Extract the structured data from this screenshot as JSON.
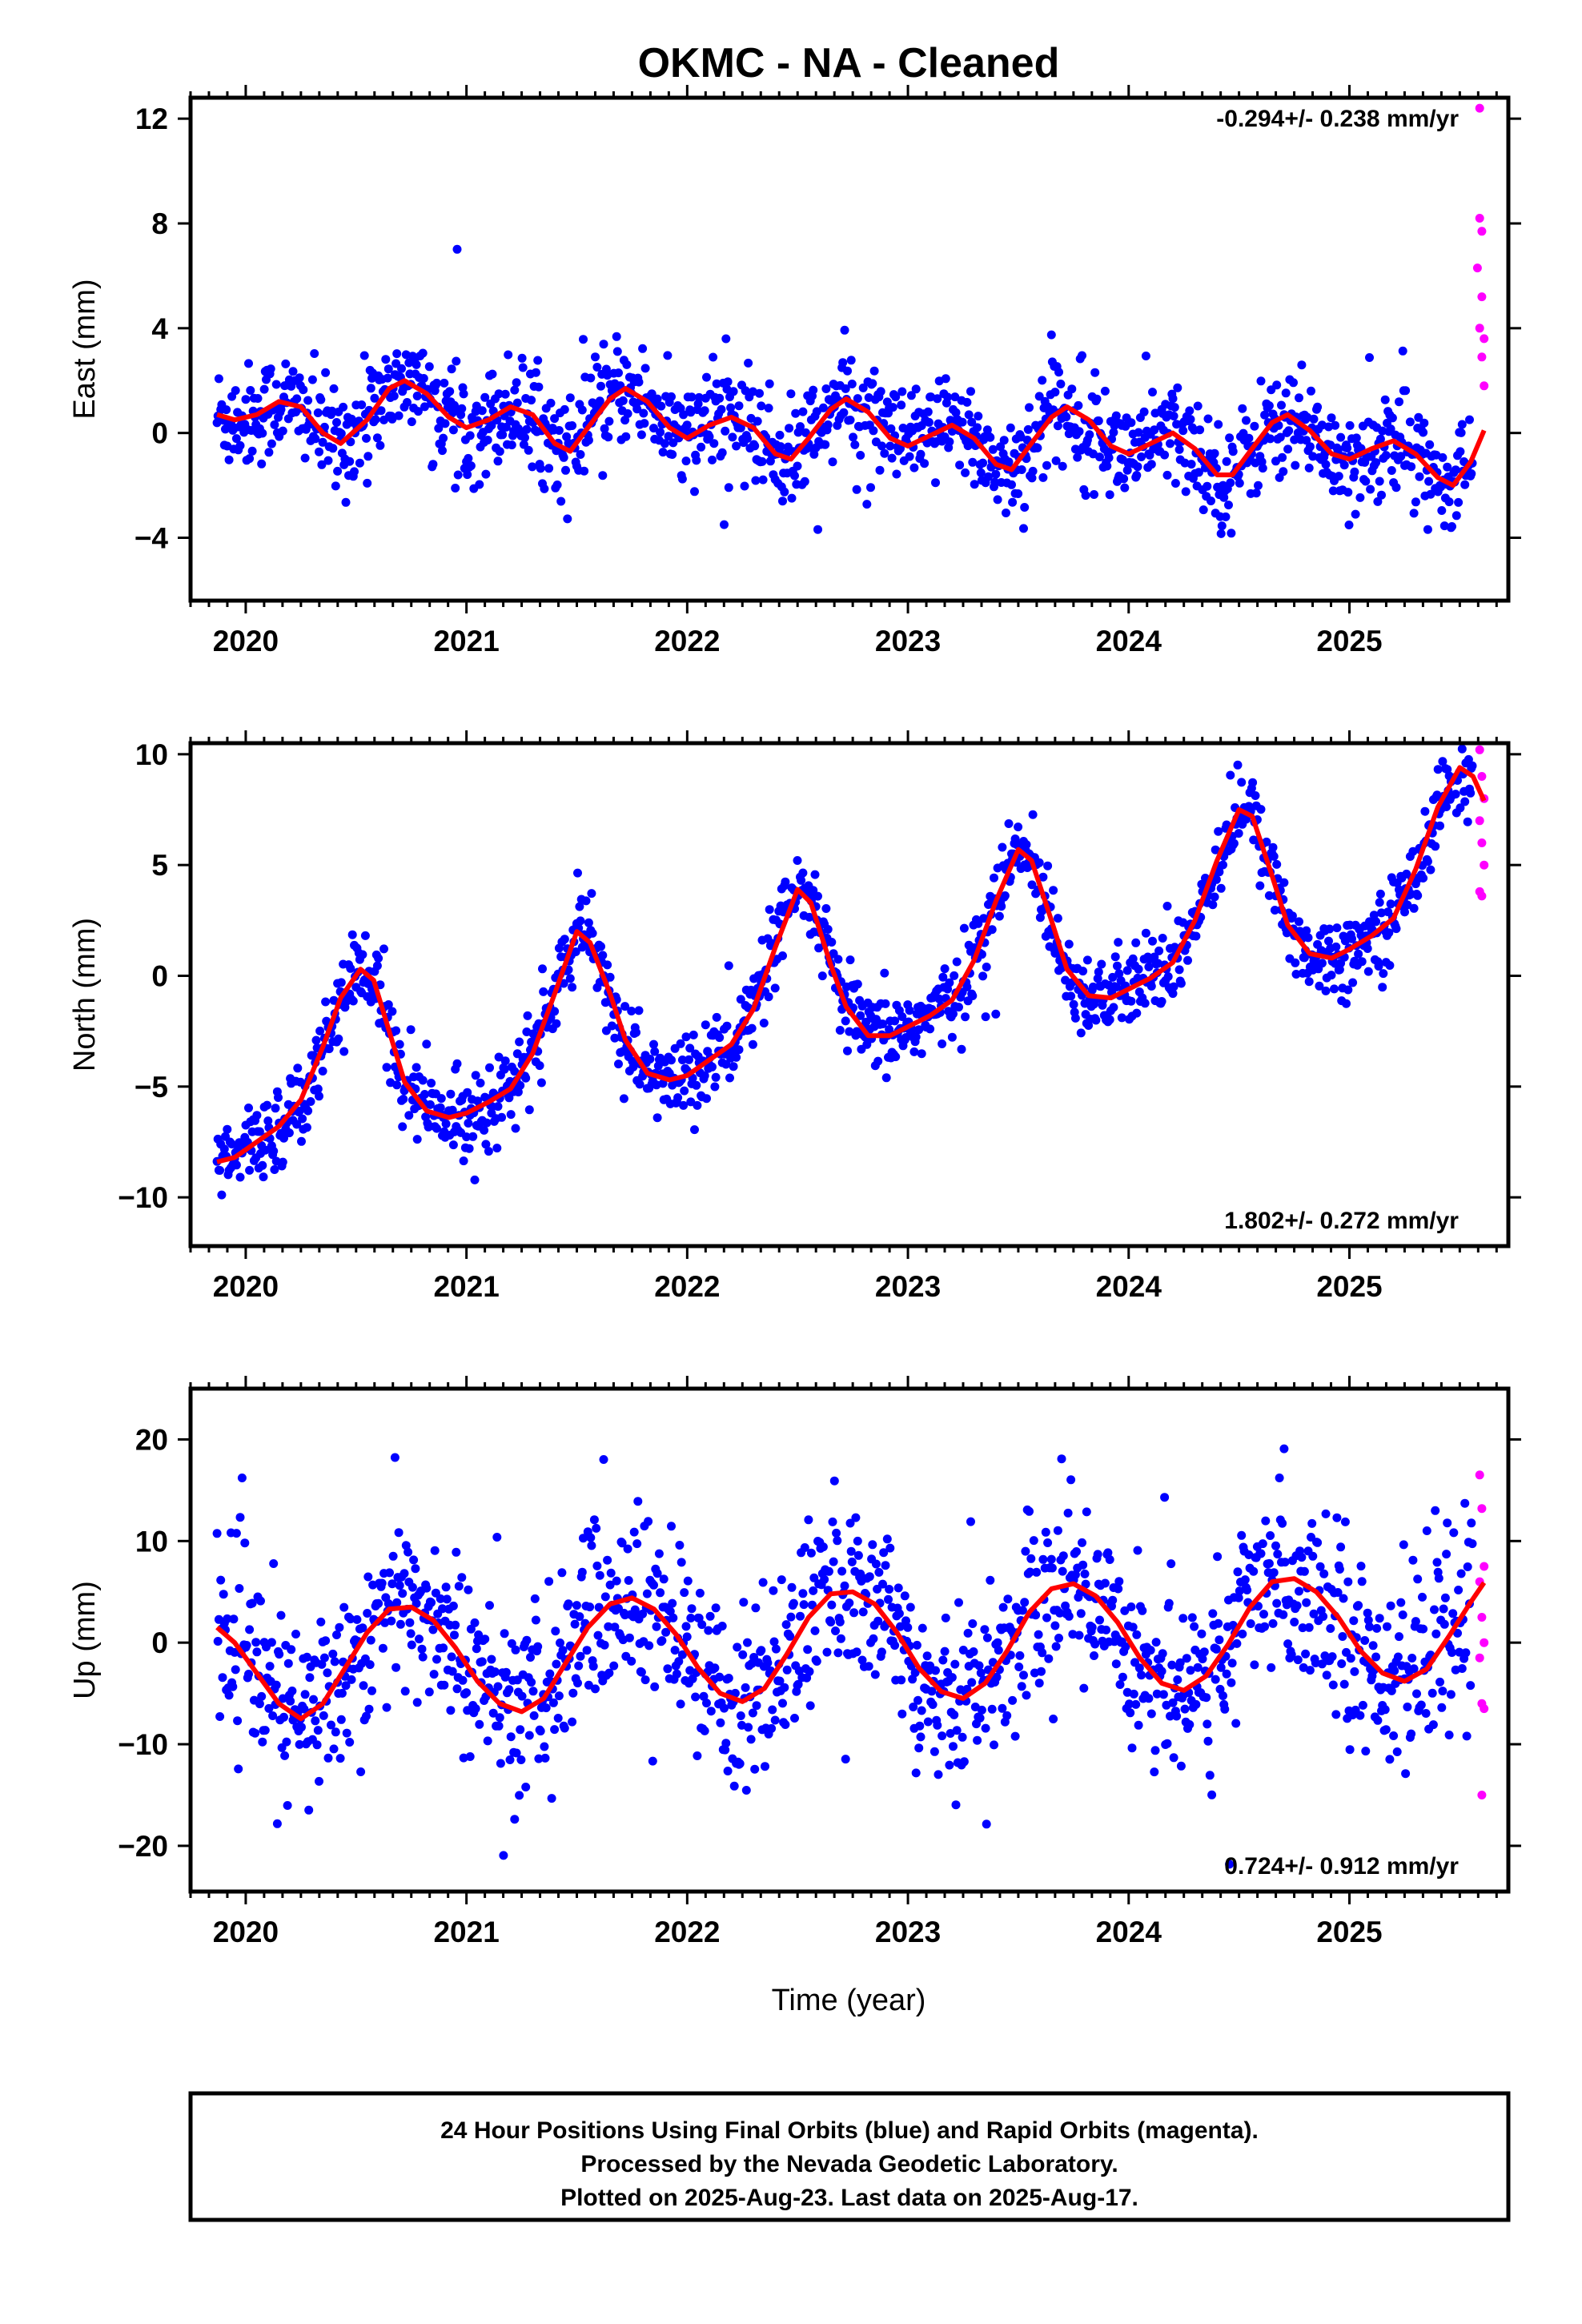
{
  "title": "OKMC  - NA - Cleaned",
  "colors": {
    "final": "#0000ff",
    "rapid": "#ff00ff",
    "fit": "#ff0000",
    "frame": "#000000"
  },
  "chart_data": [
    {
      "type": "scatter",
      "component": "east",
      "ylabel": "East (mm)",
      "xlabel": "",
      "rate": "-0.294+/- 0.238 mm/yr",
      "rate_position": "top-right",
      "xlim": [
        2019.75,
        2025.72
      ],
      "ylim": [
        -6.4,
        12.8
      ],
      "xticks": [
        "2020",
        "2021",
        "2022",
        "2023",
        "2024",
        "2025"
      ],
      "yticks": [
        "12",
        "8",
        "4",
        "0",
        "−4"
      ],
      "ytick_values": [
        12,
        8,
        4,
        0,
        -4
      ],
      "series": [
        {
          "color": "blue",
          "data_range": [
            2019.87,
            2025.56
          ],
          "scatter_sd": 1.0
        },
        {
          "color": "magenta",
          "points": [
            [
              2025.59,
              12.4
            ],
            [
              2025.59,
              8.2
            ],
            [
              2025.6,
              7.7
            ],
            [
              2025.58,
              6.3
            ],
            [
              2025.6,
              5.2
            ],
            [
              2025.59,
              4.0
            ],
            [
              2025.61,
              3.6
            ],
            [
              2025.6,
              2.9
            ],
            [
              2025.61,
              1.8
            ]
          ]
        }
      ],
      "fit": [
        [
          2019.87,
          0.7
        ],
        [
          2019.95,
          0.5
        ],
        [
          2020.05,
          0.7
        ],
        [
          2020.15,
          1.2
        ],
        [
          2020.25,
          1.0
        ],
        [
          2020.35,
          0.0
        ],
        [
          2020.43,
          -0.4
        ],
        [
          2020.55,
          0.5
        ],
        [
          2020.65,
          1.7
        ],
        [
          2020.72,
          2.0
        ],
        [
          2020.82,
          1.5
        ],
        [
          2020.92,
          0.6
        ],
        [
          2021.0,
          0.2
        ],
        [
          2021.1,
          0.5
        ],
        [
          2021.2,
          1.0
        ],
        [
          2021.3,
          0.7
        ],
        [
          2021.4,
          -0.4
        ],
        [
          2021.47,
          -0.7
        ],
        [
          2021.55,
          0.2
        ],
        [
          2021.65,
          1.3
        ],
        [
          2021.72,
          1.7
        ],
        [
          2021.82,
          1.2
        ],
        [
          2021.92,
          0.2
        ],
        [
          2022.0,
          -0.2
        ],
        [
          2022.1,
          0.3
        ],
        [
          2022.2,
          0.6
        ],
        [
          2022.3,
          0.2
        ],
        [
          2022.4,
          -0.8
        ],
        [
          2022.47,
          -1.0
        ],
        [
          2022.55,
          -0.2
        ],
        [
          2022.65,
          0.9
        ],
        [
          2022.72,
          1.3
        ],
        [
          2022.82,
          0.8
        ],
        [
          2022.92,
          -0.2
        ],
        [
          2023.0,
          -0.5
        ],
        [
          2023.1,
          -0.1
        ],
        [
          2023.2,
          0.3
        ],
        [
          2023.3,
          -0.2
        ],
        [
          2023.4,
          -1.2
        ],
        [
          2023.47,
          -1.4
        ],
        [
          2023.55,
          -0.5
        ],
        [
          2023.65,
          0.6
        ],
        [
          2023.72,
          1.0
        ],
        [
          2023.82,
          0.5
        ],
        [
          2023.92,
          -0.5
        ],
        [
          2024.0,
          -0.8
        ],
        [
          2024.1,
          -0.4
        ],
        [
          2024.2,
          0.0
        ],
        [
          2024.3,
          -0.6
        ],
        [
          2024.4,
          -1.6
        ],
        [
          2024.47,
          -1.6
        ],
        [
          2024.55,
          -0.7
        ],
        [
          2024.65,
          0.4
        ],
        [
          2024.72,
          0.7
        ],
        [
          2024.82,
          0.1
        ],
        [
          2024.92,
          -0.8
        ],
        [
          2025.0,
          -1.0
        ],
        [
          2025.1,
          -0.6
        ],
        [
          2025.2,
          -0.3
        ],
        [
          2025.3,
          -0.8
        ],
        [
          2025.4,
          -1.7
        ],
        [
          2025.47,
          -2.0
        ],
        [
          2025.55,
          -1.1
        ],
        [
          2025.61,
          0.1
        ]
      ]
    },
    {
      "type": "scatter",
      "component": "north",
      "ylabel": "North (mm)",
      "xlabel": "",
      "rate": "1.802+/- 0.272 mm/yr",
      "rate_position": "bottom-right",
      "xlim": [
        2019.75,
        2025.72
      ],
      "ylim": [
        -12.2,
        10.5
      ],
      "xticks": [
        "2020",
        "2021",
        "2022",
        "2023",
        "2024",
        "2025"
      ],
      "yticks": [
        "10",
        "5",
        "0",
        "−5",
        "−10"
      ],
      "ytick_values": [
        10,
        5,
        0,
        -5,
        -10
      ],
      "series": [
        {
          "color": "blue",
          "data_range": [
            2019.87,
            2025.56
          ],
          "scatter_sd": 0.9
        },
        {
          "color": "magenta",
          "points": [
            [
              2025.59,
              10.2
            ],
            [
              2025.6,
              9.0
            ],
            [
              2025.61,
              8.0
            ],
            [
              2025.59,
              7.0
            ],
            [
              2025.6,
              6.0
            ],
            [
              2025.61,
              5.0
            ],
            [
              2025.59,
              3.8
            ],
            [
              2025.6,
              3.6
            ]
          ]
        }
      ],
      "fit": [
        [
          2019.87,
          -8.4
        ],
        [
          2019.95,
          -8.2
        ],
        [
          2020.05,
          -7.5
        ],
        [
          2020.15,
          -6.8
        ],
        [
          2020.25,
          -5.6
        ],
        [
          2020.35,
          -3.2
        ],
        [
          2020.43,
          -1.0
        ],
        [
          2020.52,
          0.3
        ],
        [
          2020.58,
          -0.2
        ],
        [
          2020.65,
          -2.5
        ],
        [
          2020.72,
          -4.8
        ],
        [
          2020.82,
          -6.1
        ],
        [
          2020.92,
          -6.4
        ],
        [
          2021.0,
          -6.2
        ],
        [
          2021.1,
          -5.7
        ],
        [
          2021.2,
          -5.1
        ],
        [
          2021.3,
          -3.5
        ],
        [
          2021.4,
          -0.8
        ],
        [
          2021.5,
          2.0
        ],
        [
          2021.56,
          1.5
        ],
        [
          2021.65,
          -0.8
        ],
        [
          2021.72,
          -2.9
        ],
        [
          2021.82,
          -4.4
        ],
        [
          2021.92,
          -4.7
        ],
        [
          2022.0,
          -4.5
        ],
        [
          2022.1,
          -3.8
        ],
        [
          2022.2,
          -3.1
        ],
        [
          2022.3,
          -1.5
        ],
        [
          2022.4,
          1.3
        ],
        [
          2022.5,
          3.9
        ],
        [
          2022.56,
          3.3
        ],
        [
          2022.65,
          0.5
        ],
        [
          2022.72,
          -1.4
        ],
        [
          2022.82,
          -2.7
        ],
        [
          2022.92,
          -2.7
        ],
        [
          2023.0,
          -2.3
        ],
        [
          2023.1,
          -1.8
        ],
        [
          2023.2,
          -1.1
        ],
        [
          2023.3,
          0.7
        ],
        [
          2023.4,
          3.4
        ],
        [
          2023.5,
          5.7
        ],
        [
          2023.56,
          5.2
        ],
        [
          2023.65,
          2.5
        ],
        [
          2023.72,
          0.3
        ],
        [
          2023.82,
          -0.9
        ],
        [
          2023.92,
          -1.0
        ],
        [
          2024.0,
          -0.6
        ],
        [
          2024.1,
          -0.1
        ],
        [
          2024.2,
          0.6
        ],
        [
          2024.3,
          2.5
        ],
        [
          2024.4,
          5.2
        ],
        [
          2024.5,
          7.5
        ],
        [
          2024.56,
          7.2
        ],
        [
          2024.65,
          4.5
        ],
        [
          2024.72,
          2.3
        ],
        [
          2024.82,
          1.0
        ],
        [
          2024.92,
          0.8
        ],
        [
          2025.0,
          1.2
        ],
        [
          2025.1,
          1.8
        ],
        [
          2025.2,
          2.6
        ],
        [
          2025.3,
          4.8
        ],
        [
          2025.4,
          7.6
        ],
        [
          2025.5,
          9.4
        ],
        [
          2025.56,
          9.0
        ],
        [
          2025.61,
          7.9
        ]
      ]
    },
    {
      "type": "scatter",
      "component": "up",
      "ylabel": "Up (mm)",
      "xlabel": "Time (year)",
      "rate": "0.724+/- 0.912 mm/yr",
      "rate_position": "bottom-right",
      "xlim": [
        2019.75,
        2025.72
      ],
      "ylim": [
        -24.5,
        25.0
      ],
      "xticks": [
        "2020",
        "2021",
        "2022",
        "2023",
        "2024",
        "2025"
      ],
      "yticks": [
        "20",
        "10",
        "0",
        "−10",
        "−20"
      ],
      "ytick_values": [
        20,
        10,
        0,
        -10,
        -20
      ],
      "series": [
        {
          "color": "blue",
          "data_range": [
            2019.87,
            2025.56
          ],
          "scatter_sd": 4.5
        },
        {
          "color": "magenta",
          "points": [
            [
              2025.59,
              16.5
            ],
            [
              2025.6,
              13.2
            ],
            [
              2025.61,
              7.5
            ],
            [
              2025.59,
              6.0
            ],
            [
              2025.6,
              2.5
            ],
            [
              2025.61,
              0.0
            ],
            [
              2025.59,
              -1.5
            ],
            [
              2025.6,
              -6.0
            ],
            [
              2025.61,
              -6.5
            ],
            [
              2025.6,
              -15.0
            ]
          ]
        }
      ],
      "fit": [
        [
          2019.87,
          1.5
        ],
        [
          2019.95,
          0.0
        ],
        [
          2020.05,
          -3.0
        ],
        [
          2020.15,
          -6.0
        ],
        [
          2020.25,
          -7.5
        ],
        [
          2020.35,
          -6.0
        ],
        [
          2020.45,
          -2.5
        ],
        [
          2020.55,
          1.0
        ],
        [
          2020.65,
          3.3
        ],
        [
          2020.75,
          3.5
        ],
        [
          2020.85,
          2.2
        ],
        [
          2020.95,
          -0.5
        ],
        [
          2021.05,
          -3.8
        ],
        [
          2021.15,
          -6.0
        ],
        [
          2021.25,
          -6.8
        ],
        [
          2021.35,
          -5.5
        ],
        [
          2021.45,
          -2.0
        ],
        [
          2021.55,
          1.5
        ],
        [
          2021.65,
          3.8
        ],
        [
          2021.75,
          4.4
        ],
        [
          2021.85,
          3.3
        ],
        [
          2021.95,
          0.8
        ],
        [
          2022.05,
          -2.5
        ],
        [
          2022.15,
          -5.0
        ],
        [
          2022.25,
          -5.8
        ],
        [
          2022.35,
          -4.5
        ],
        [
          2022.45,
          -1.2
        ],
        [
          2022.55,
          2.5
        ],
        [
          2022.65,
          4.8
        ],
        [
          2022.75,
          5.0
        ],
        [
          2022.85,
          3.8
        ],
        [
          2022.95,
          1.0
        ],
        [
          2023.05,
          -2.5
        ],
        [
          2023.15,
          -4.8
        ],
        [
          2023.25,
          -5.5
        ],
        [
          2023.35,
          -4.0
        ],
        [
          2023.45,
          -0.8
        ],
        [
          2023.55,
          3.0
        ],
        [
          2023.65,
          5.3
        ],
        [
          2023.75,
          5.8
        ],
        [
          2023.85,
          4.6
        ],
        [
          2023.95,
          2.0
        ],
        [
          2024.05,
          -1.5
        ],
        [
          2024.15,
          -4.0
        ],
        [
          2024.25,
          -4.7
        ],
        [
          2024.35,
          -3.3
        ],
        [
          2024.45,
          -0.2
        ],
        [
          2024.55,
          3.5
        ],
        [
          2024.65,
          6.0
        ],
        [
          2024.75,
          6.3
        ],
        [
          2024.85,
          5.0
        ],
        [
          2024.95,
          2.5
        ],
        [
          2025.05,
          -0.8
        ],
        [
          2025.15,
          -3.0
        ],
        [
          2025.25,
          -3.8
        ],
        [
          2025.35,
          -2.6
        ],
        [
          2025.45,
          0.6
        ],
        [
          2025.55,
          4.0
        ],
        [
          2025.61,
          5.9
        ]
      ]
    }
  ],
  "footer": {
    "line1": "24 Hour Positions Using Final Orbits (blue) and Rapid Orbits (magenta).",
    "line2": "Processed by the Nevada Geodetic Laboratory.",
    "line3": "Plotted on 2025-Aug-23. Last data on 2025-Aug-17."
  }
}
